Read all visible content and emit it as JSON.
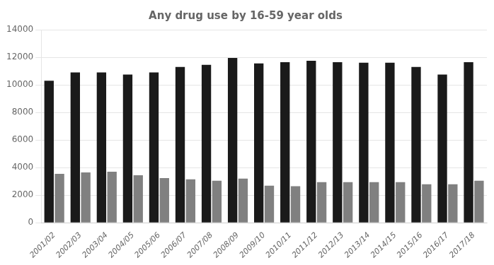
{
  "chart_data": {
    "type": "bar",
    "title": "Any drug use by 16-59 year olds",
    "categories": [
      "2001/02",
      "2002/03",
      "2003/04",
      "2004/05",
      "2005/06",
      "2006/07",
      "2007/08",
      "2008/09",
      "2009/10",
      "2010/11",
      "2011/12",
      "2012/13",
      "2013/14",
      "2014/15",
      "2015/16",
      "2016/17",
      "2017/18"
    ],
    "series": [
      {
        "color": "#1a1a1a",
        "values": [
          10300,
          10900,
          10900,
          10750,
          10900,
          11300,
          11450,
          11950,
          11550,
          11650,
          11750,
          11650,
          11600,
          11600,
          11300,
          10750,
          11650
        ]
      },
      {
        "color": "#808080",
        "values": [
          3550,
          3650,
          3700,
          3450,
          3250,
          3150,
          3050,
          3200,
          2700,
          2650,
          2950,
          2950,
          2950,
          2950,
          2800,
          2800,
          3050
        ]
      }
    ],
    "ylim": [
      0,
      14000
    ],
    "yticks": [
      0,
      2000,
      4000,
      6000,
      8000,
      10000,
      12000,
      14000
    ],
    "grid": true
  }
}
